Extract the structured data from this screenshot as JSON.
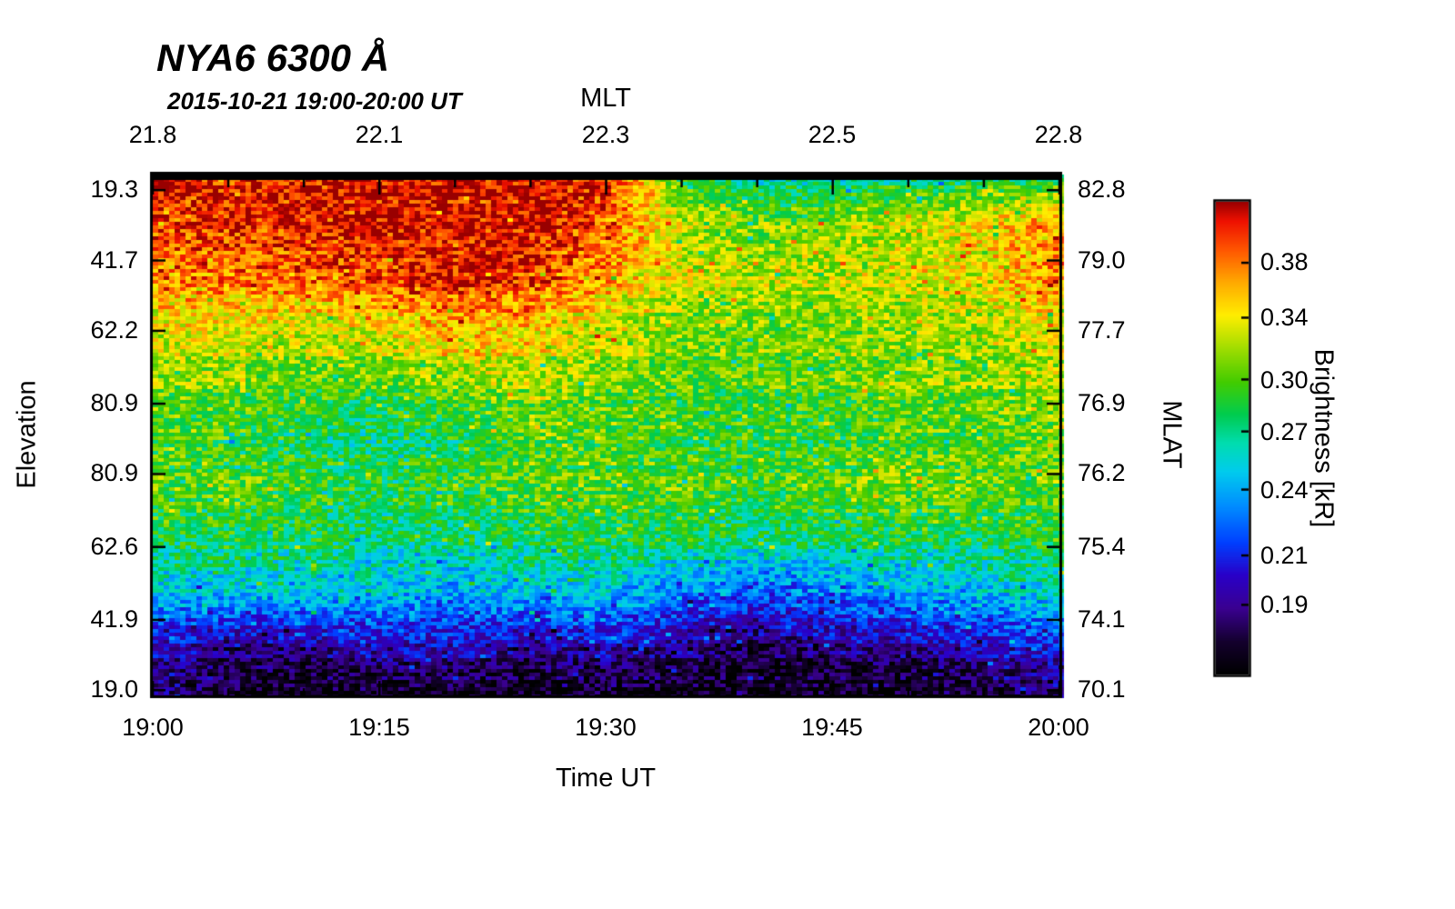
{
  "chart_data": {
    "type": "heatmap",
    "title": "NYA6 6300 Å",
    "subtitle": "2015-10-21 19:00-20:00 UT",
    "axes": {
      "top": {
        "label": "MLT",
        "ticks": [
          "21.8",
          "22.1",
          "22.3",
          "22.5",
          "22.8"
        ]
      },
      "bottom": {
        "label": "Time UT",
        "ticks": [
          "19:00",
          "19:15",
          "19:30",
          "19:45",
          "20:00"
        ]
      },
      "left": {
        "label": "Elevation",
        "ticks": [
          "19.3",
          "41.7",
          "62.2",
          "80.9",
          "80.9",
          "62.6",
          "41.9",
          "19.0"
        ]
      },
      "right": {
        "label": "MLAT",
        "ticks": [
          "82.8",
          "79.0",
          "77.7",
          "76.9",
          "76.2",
          "75.4",
          "74.1",
          "70.1"
        ]
      }
    },
    "colorbar": {
      "label": "Brightness [kR]",
      "ticks": [
        "0.38",
        "0.34",
        "0.30",
        "0.27",
        "0.24",
        "0.21",
        "0.19"
      ],
      "tick_values": [
        0.38,
        0.34,
        0.3,
        0.27,
        0.24,
        0.21,
        0.19
      ],
      "vmin": 0.165,
      "vmax": 0.43,
      "scale": "log"
    },
    "colormap_stops": [
      [
        0.0,
        "#000000"
      ],
      [
        0.07,
        "#14002e"
      ],
      [
        0.14,
        "#3a0090"
      ],
      [
        0.21,
        "#2a00c8"
      ],
      [
        0.28,
        "#0040ff"
      ],
      [
        0.36,
        "#0090ff"
      ],
      [
        0.43,
        "#00ccee"
      ],
      [
        0.49,
        "#00ddb0"
      ],
      [
        0.55,
        "#00cc50"
      ],
      [
        0.62,
        "#44cc00"
      ],
      [
        0.69,
        "#a0dd00"
      ],
      [
        0.76,
        "#ffee00"
      ],
      [
        0.83,
        "#ffaa00"
      ],
      [
        0.9,
        "#ff5500"
      ],
      [
        0.96,
        "#ee1100"
      ],
      [
        1.0,
        "#990000"
      ]
    ],
    "grid_values_kR": {
      "rows": 11,
      "cols": 13,
      "description": "Coarse brightness grid in kR; rows from top of plot (elevation tick 19.3) to bottom (19.0), cols from 19:00 UT to 20:00 UT",
      "values": [
        [
          0.41,
          0.41,
          0.42,
          0.42,
          0.42,
          0.42,
          0.41,
          0.29,
          0.26,
          0.26,
          0.27,
          0.27,
          0.27
        ],
        [
          0.4,
          0.41,
          0.41,
          0.42,
          0.42,
          0.42,
          0.39,
          0.33,
          0.31,
          0.32,
          0.33,
          0.35,
          0.38
        ],
        [
          0.37,
          0.38,
          0.38,
          0.39,
          0.41,
          0.4,
          0.36,
          0.33,
          0.32,
          0.32,
          0.33,
          0.34,
          0.37
        ],
        [
          0.34,
          0.34,
          0.33,
          0.34,
          0.36,
          0.35,
          0.33,
          0.31,
          0.31,
          0.31,
          0.32,
          0.32,
          0.34
        ],
        [
          0.31,
          0.31,
          0.3,
          0.3,
          0.31,
          0.32,
          0.31,
          0.3,
          0.3,
          0.3,
          0.31,
          0.31,
          0.32
        ],
        [
          0.3,
          0.29,
          0.28,
          0.27,
          0.28,
          0.3,
          0.3,
          0.29,
          0.29,
          0.29,
          0.3,
          0.3,
          0.31
        ],
        [
          0.3,
          0.3,
          0.29,
          0.28,
          0.29,
          0.3,
          0.3,
          0.3,
          0.29,
          0.3,
          0.31,
          0.3,
          0.3
        ],
        [
          0.28,
          0.28,
          0.28,
          0.27,
          0.27,
          0.28,
          0.28,
          0.28,
          0.27,
          0.28,
          0.28,
          0.28,
          0.29
        ],
        [
          0.25,
          0.25,
          0.25,
          0.25,
          0.24,
          0.25,
          0.25,
          0.23,
          0.22,
          0.23,
          0.24,
          0.25,
          0.26
        ],
        [
          0.2,
          0.19,
          0.19,
          0.2,
          0.2,
          0.19,
          0.2,
          0.19,
          0.18,
          0.19,
          0.19,
          0.2,
          0.21
        ],
        [
          0.19,
          0.175,
          0.17,
          0.17,
          0.17,
          0.17,
          0.175,
          0.17,
          0.17,
          0.17,
          0.17,
          0.175,
          0.185
        ]
      ]
    }
  }
}
